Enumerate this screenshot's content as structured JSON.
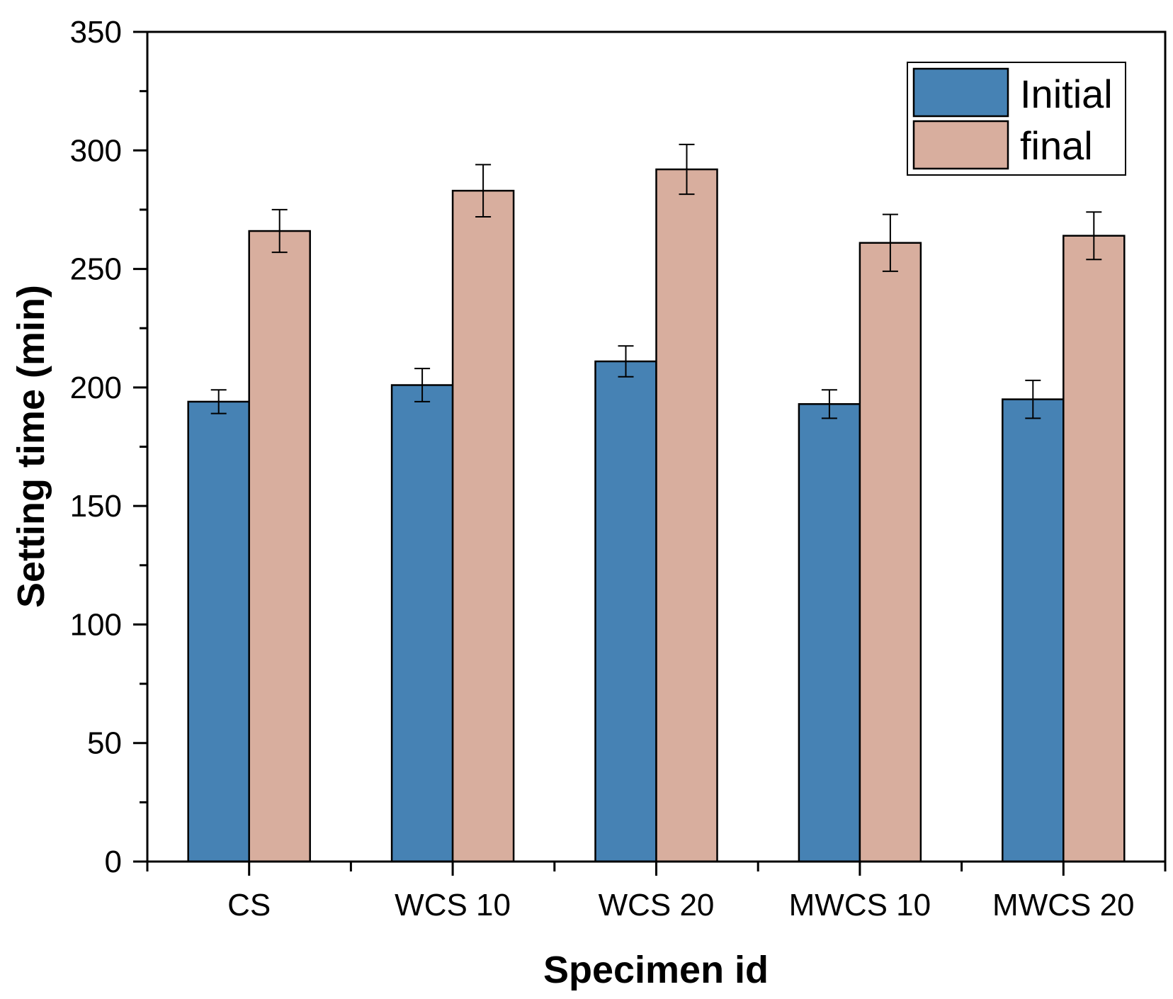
{
  "chart_data": {
    "type": "bar",
    "title": "",
    "xlabel": "Specimen id",
    "ylabel": "Setting time (min)",
    "ylim": [
      0,
      350
    ],
    "yticks": [
      0,
      50,
      100,
      150,
      200,
      250,
      300,
      350
    ],
    "categories": [
      "CS",
      "WCS 10",
      "WCS 20",
      "MWCS 10",
      "MWCS 20"
    ],
    "series": [
      {
        "name": "Initial",
        "color": "#4682B4",
        "values": [
          194,
          201,
          211,
          193,
          195
        ],
        "errors": [
          5,
          7,
          6.5,
          6,
          8
        ]
      },
      {
        "name": "final",
        "color": "#D8AE9E",
        "values": [
          266,
          283,
          292,
          261,
          264
        ],
        "errors": [
          9,
          11,
          10.5,
          12,
          10
        ]
      }
    ],
    "grid": false,
    "legend_position": "top-right"
  }
}
